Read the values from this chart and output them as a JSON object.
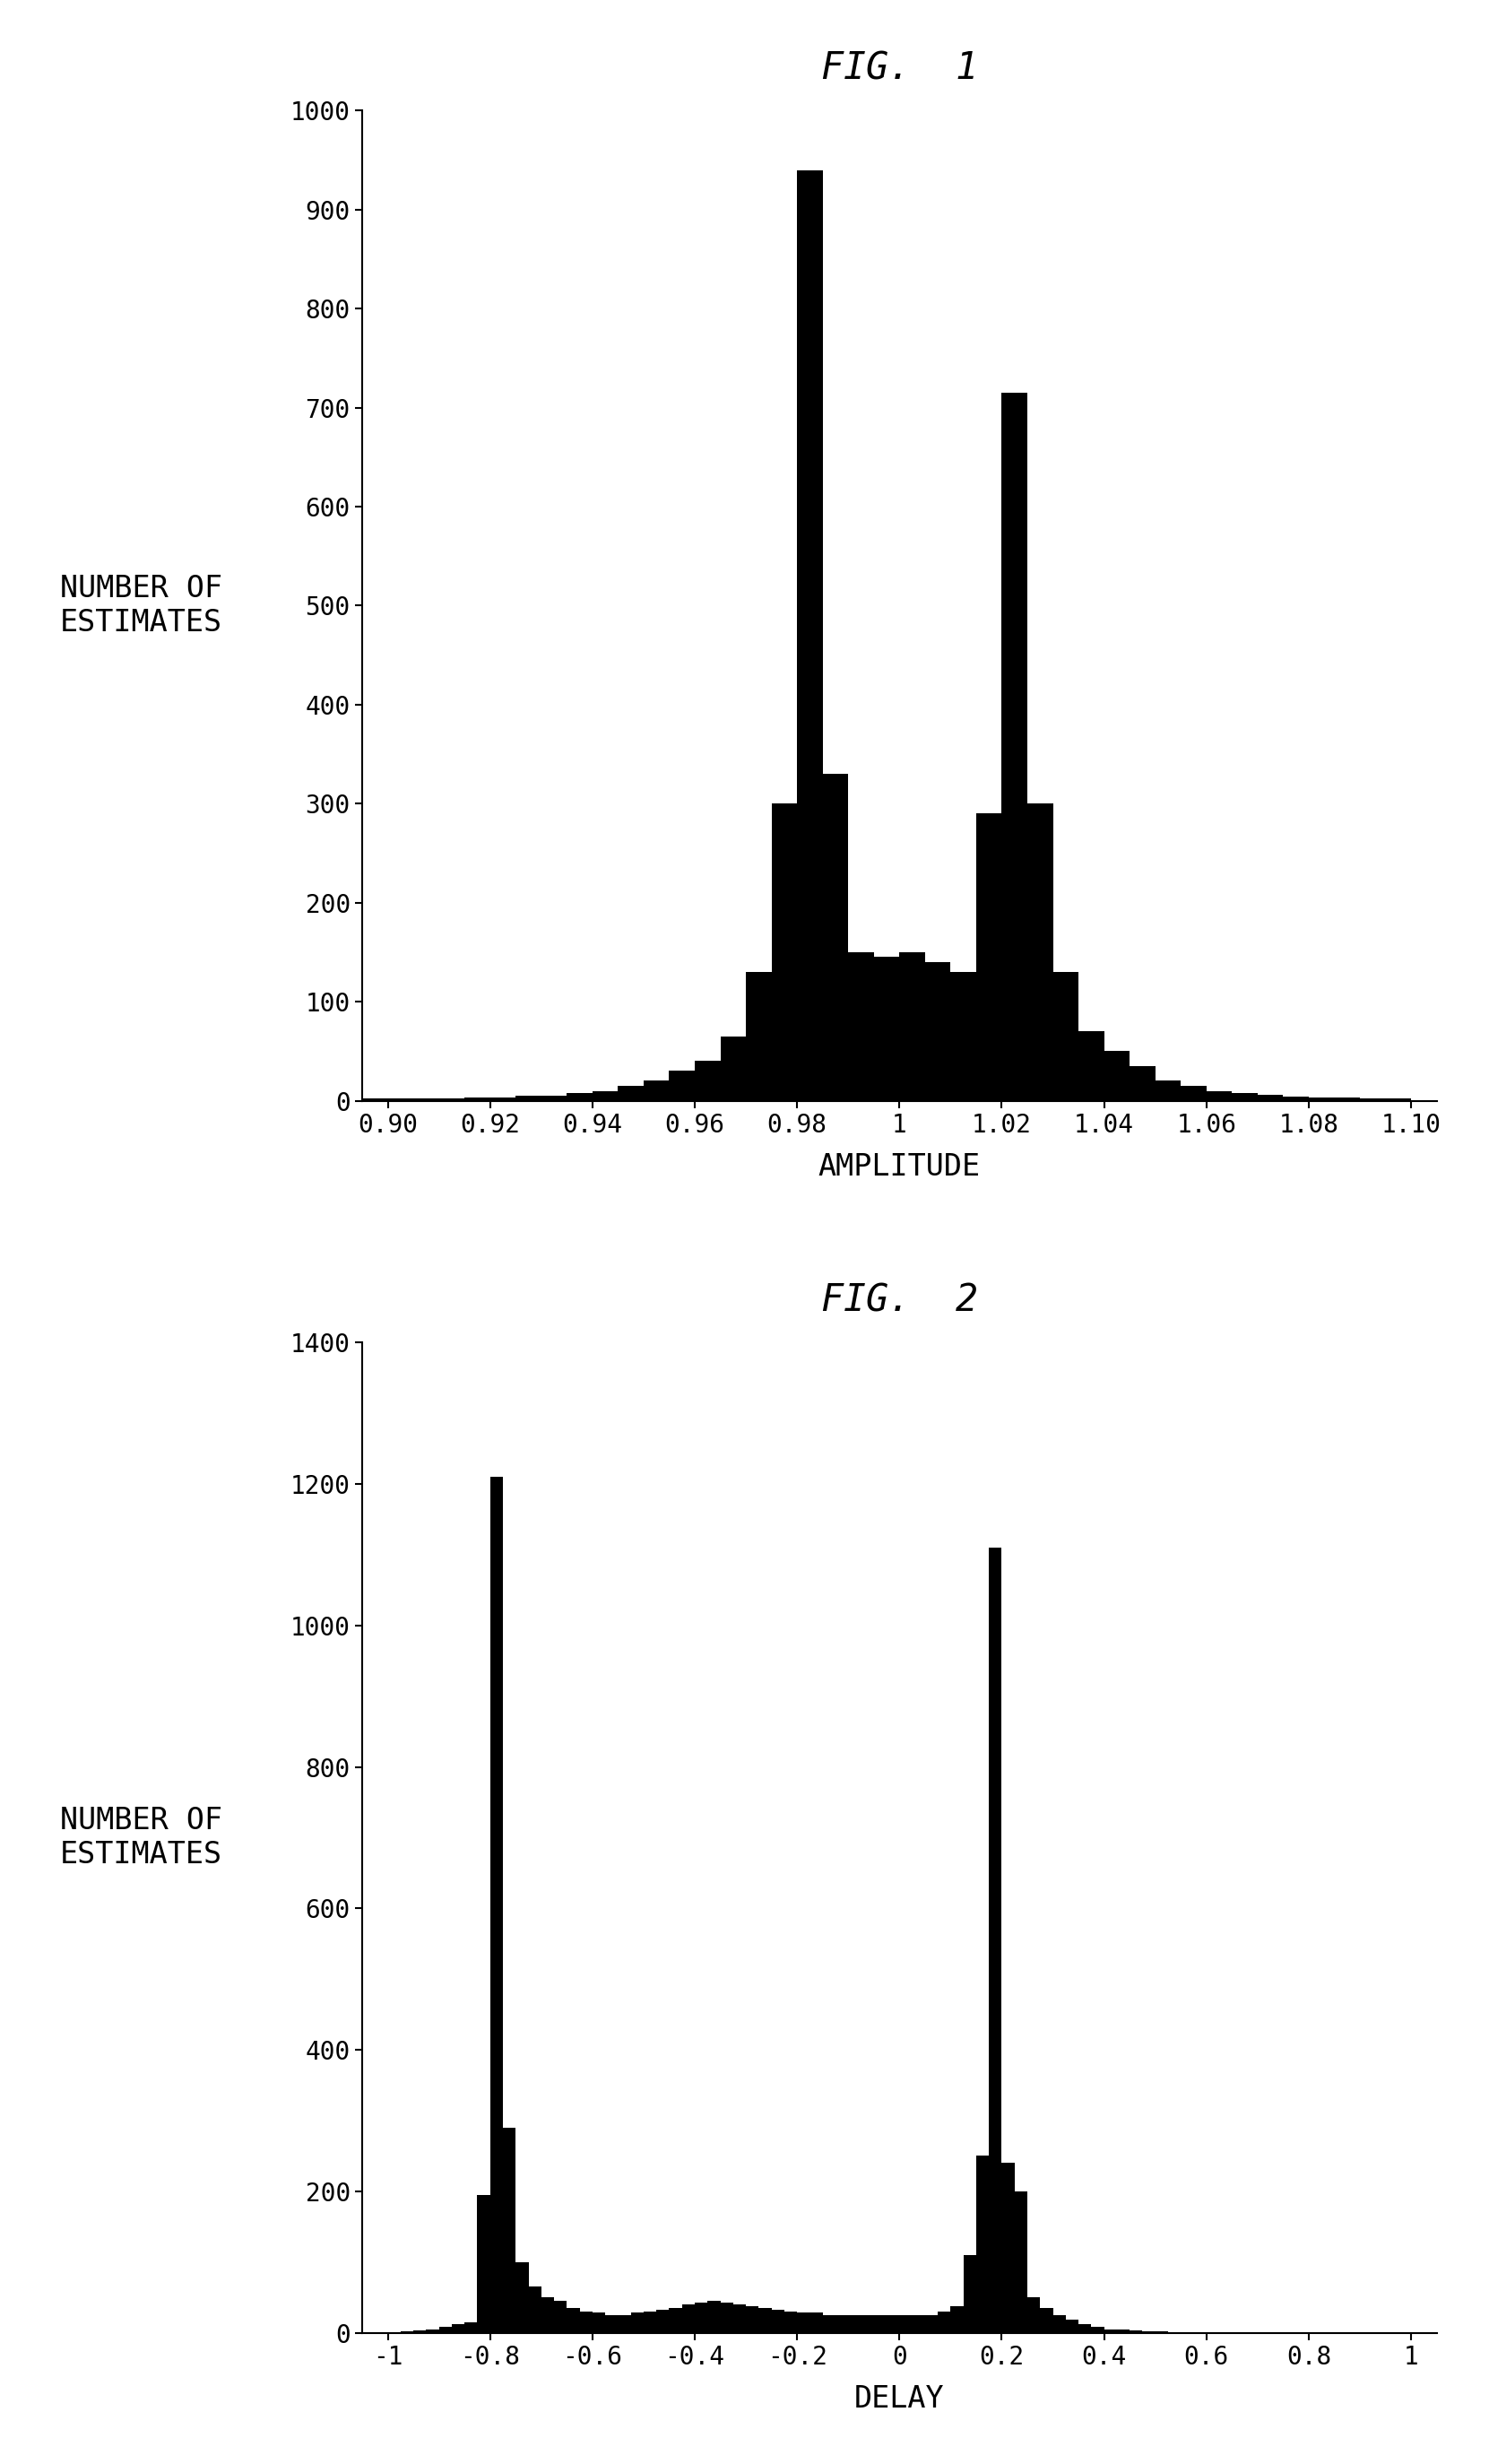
{
  "fig1": {
    "title": "FIG.  1",
    "xlabel": "AMPLITUDE",
    "ylabel": "NUMBER OF\nESTIMATES",
    "xlim": [
      0.895,
      1.105
    ],
    "ylim": [
      0,
      1000
    ],
    "yticks": [
      0,
      100,
      200,
      300,
      400,
      500,
      600,
      700,
      800,
      900,
      1000
    ],
    "xticks": [
      0.9,
      0.92,
      0.94,
      0.96,
      0.98,
      1.0,
      1.02,
      1.04,
      1.06,
      1.08,
      1.1
    ],
    "xtick_labels": [
      "0.90",
      "0.92",
      "0.94",
      "0.96",
      "0.98",
      "1",
      "1.02",
      "1.04",
      "1.06",
      "1.08",
      "1.10"
    ],
    "bin_edges": [
      0.895,
      0.905,
      0.91,
      0.915,
      0.92,
      0.925,
      0.93,
      0.935,
      0.94,
      0.945,
      0.95,
      0.955,
      0.96,
      0.965,
      0.97,
      0.975,
      0.977,
      0.979,
      0.981,
      0.983,
      0.985,
      0.987,
      0.989,
      0.991,
      0.993,
      0.995,
      0.997,
      0.999,
      1.001,
      1.003,
      1.005,
      1.007,
      1.009,
      1.011,
      1.013,
      1.015,
      1.017,
      1.019,
      1.021,
      1.023,
      1.025,
      1.027,
      1.029,
      1.031,
      1.033,
      1.035,
      1.04,
      1.045,
      1.05,
      1.055,
      1.06,
      1.065,
      1.07,
      1.075,
      1.08,
      1.085,
      1.09,
      1.095,
      1.1,
      1.105
    ],
    "bar_color": "#000000"
  },
  "fig2": {
    "title": "FIG.  2",
    "xlabel": "DELAY",
    "ylabel": "NUMBER OF\nESTIMATES",
    "xlim": [
      -1.05,
      1.05
    ],
    "ylim": [
      0,
      1400
    ],
    "yticks": [
      0,
      200,
      400,
      600,
      800,
      1000,
      1200,
      1400
    ],
    "xticks": [
      -1.0,
      -0.8,
      -0.6,
      -0.4,
      -0.2,
      0.0,
      0.2,
      0.4,
      0.6,
      0.8,
      1.0
    ],
    "xtick_labels": [
      "-1",
      "-0.8",
      "-0.6",
      "-0.4",
      "-0.2",
      "0",
      "0.2",
      "0.4",
      "0.6",
      "0.8",
      "1"
    ],
    "bar_color": "#000000"
  },
  "background_color": "#ffffff",
  "title_fontsize": 30,
  "label_fontsize": 24,
  "tick_fontsize": 20
}
